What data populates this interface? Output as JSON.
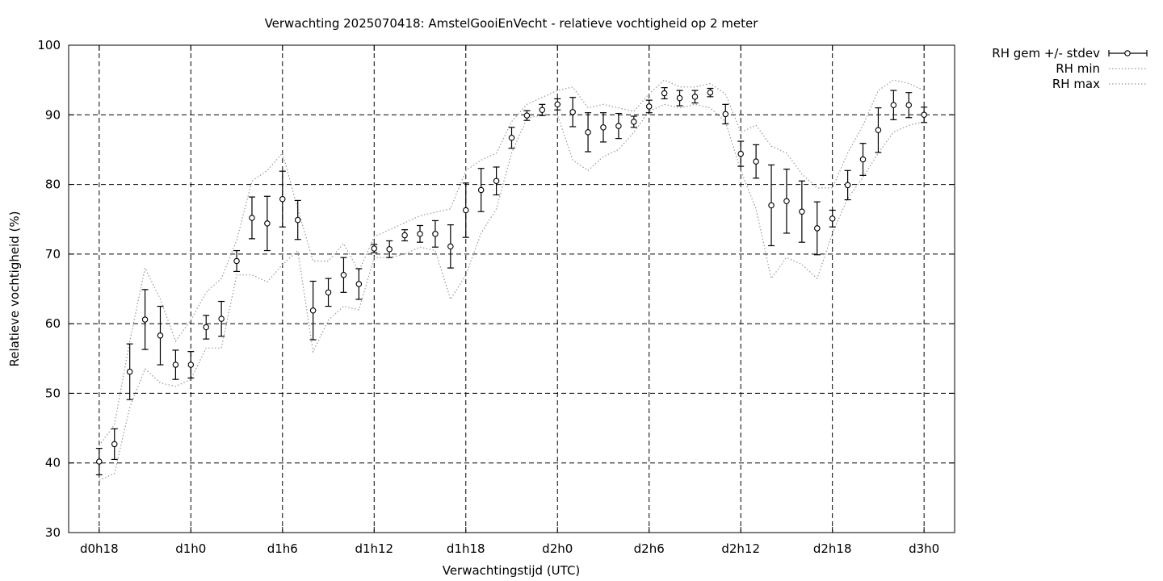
{
  "chart_data": {
    "type": "line",
    "title": "Verwachting 2025070418: AmstelGooiEnVecht - relatieve vochtigheid op 2 meter",
    "xlabel": "Verwachtingstijd (UTC)",
    "ylabel": "Relatieve vochtigheid (%)",
    "ylim": [
      30,
      100
    ],
    "yticks": [
      30,
      40,
      50,
      60,
      70,
      80,
      90,
      100
    ],
    "xlim": [
      -2,
      56
    ],
    "xticks": [
      {
        "x": 0,
        "label": "d0h18"
      },
      {
        "x": 6,
        "label": "d1h0"
      },
      {
        "x": 12,
        "label": "d1h6"
      },
      {
        "x": 18,
        "label": "d1h12"
      },
      {
        "x": 24,
        "label": "d1h18"
      },
      {
        "x": 30,
        "label": "d2h0"
      },
      {
        "x": 36,
        "label": "d2h6"
      },
      {
        "x": 42,
        "label": "d2h12"
      },
      {
        "x": 48,
        "label": "d2h18"
      },
      {
        "x": 54,
        "label": "d3h0"
      }
    ],
    "x_unit": "uren vanaf d0h18",
    "grid": true,
    "legend_position": "outside-top-right",
    "series": [
      {
        "name": "RH gem +/- stdev",
        "style": "errorbars-points",
        "x": [
          0,
          1,
          2,
          3,
          4,
          5,
          6,
          7,
          8,
          9,
          10,
          11,
          12,
          13,
          14,
          15,
          16,
          17,
          18,
          19,
          20,
          21,
          22,
          23,
          24,
          25,
          26,
          27,
          28,
          29,
          30,
          31,
          32,
          33,
          34,
          35,
          36,
          37,
          38,
          39,
          40,
          41,
          42,
          43,
          44,
          45,
          46,
          47,
          48,
          49,
          50,
          51,
          52,
          53,
          54
        ],
        "y": [
          40.2,
          42.7,
          53.1,
          60.6,
          58.3,
          54.1,
          54.1,
          59.5,
          60.7,
          69.0,
          75.2,
          74.4,
          77.9,
          74.9,
          61.9,
          64.5,
          67.0,
          65.7,
          70.8,
          70.7,
          72.7,
          72.9,
          72.9,
          71.1,
          76.3,
          79.2,
          80.5,
          86.7,
          89.9,
          90.7,
          91.5,
          90.4,
          87.5,
          88.2,
          88.4,
          89.0,
          91.2,
          93.1,
          92.4,
          92.6,
          93.2,
          90.1,
          84.4,
          83.3,
          77.0,
          77.6,
          76.1,
          73.7,
          75.1,
          79.9,
          83.6,
          87.8,
          91.4,
          91.4,
          90.0
        ],
        "stdev": [
          1.9,
          2.2,
          4.0,
          4.3,
          4.2,
          2.1,
          1.9,
          1.7,
          2.5,
          1.5,
          3.0,
          3.9,
          4.0,
          2.8,
          4.2,
          2.0,
          2.5,
          2.2,
          0.6,
          1.2,
          0.8,
          1.2,
          1.9,
          3.1,
          3.9,
          3.1,
          2.0,
          1.5,
          0.7,
          0.8,
          0.8,
          2.1,
          2.8,
          2.1,
          1.8,
          0.8,
          0.9,
          0.8,
          1.1,
          0.9,
          0.6,
          1.4,
          1.8,
          2.4,
          5.8,
          4.6,
          4.4,
          3.8,
          1.2,
          2.1,
          2.3,
          3.2,
          2.1,
          1.8,
          1.1
        ],
        "color": "#000000"
      },
      {
        "name": "RH min",
        "style": "dotted",
        "x": [
          0,
          1,
          2,
          3,
          4,
          5,
          6,
          7,
          8,
          9,
          10,
          11,
          12,
          13,
          14,
          15,
          16,
          17,
          18,
          19,
          20,
          21,
          22,
          23,
          24,
          25,
          26,
          27,
          28,
          29,
          30,
          31,
          32,
          33,
          34,
          35,
          36,
          37,
          38,
          39,
          40,
          41,
          42,
          43,
          44,
          45,
          46,
          47,
          48,
          49,
          50,
          51,
          52,
          53,
          54
        ],
        "y": [
          37.5,
          38.5,
          48.0,
          53.5,
          51.5,
          51.0,
          52.0,
          56.5,
          56.5,
          67.0,
          67.0,
          66.0,
          68.5,
          70.5,
          56.0,
          60.5,
          62.5,
          62.0,
          69.5,
          69.5,
          70.0,
          71.0,
          70.5,
          63.5,
          67.0,
          73.0,
          76.5,
          84.5,
          89.5,
          90.0,
          90.0,
          83.5,
          82.0,
          84.0,
          85.0,
          87.5,
          90.5,
          91.5,
          91.0,
          91.5,
          91.0,
          89.0,
          82.0,
          76.5,
          66.5,
          69.5,
          68.5,
          66.5,
          73.0,
          78.0,
          81.0,
          84.5,
          87.5,
          88.5,
          89.0
        ],
        "color": "#999999"
      },
      {
        "name": "RH max",
        "style": "dotted",
        "x": [
          0,
          1,
          2,
          3,
          4,
          5,
          6,
          7,
          8,
          9,
          10,
          11,
          12,
          13,
          14,
          15,
          16,
          17,
          18,
          19,
          20,
          21,
          22,
          23,
          24,
          25,
          26,
          27,
          28,
          29,
          30,
          31,
          32,
          33,
          34,
          35,
          36,
          37,
          38,
          39,
          40,
          41,
          42,
          43,
          44,
          45,
          46,
          47,
          48,
          49,
          50,
          51,
          52,
          53,
          54
        ],
        "y": [
          42.5,
          45.5,
          57.5,
          68.0,
          63.5,
          57.5,
          60.5,
          64.5,
          66.5,
          72.0,
          80.5,
          82.0,
          84.5,
          76.5,
          69.0,
          69.0,
          71.5,
          67.5,
          72.5,
          73.5,
          74.5,
          75.5,
          76.0,
          76.5,
          82.0,
          83.5,
          84.5,
          89.0,
          91.5,
          92.5,
          93.5,
          94.0,
          91.0,
          91.5,
          91.0,
          90.5,
          93.0,
          95.0,
          94.0,
          94.0,
          94.5,
          93.0,
          87.5,
          88.5,
          85.5,
          84.5,
          81.5,
          79.5,
          79.5,
          84.5,
          88.5,
          93.5,
          95.0,
          94.5,
          93.5
        ],
        "color": "#999999"
      }
    ]
  }
}
